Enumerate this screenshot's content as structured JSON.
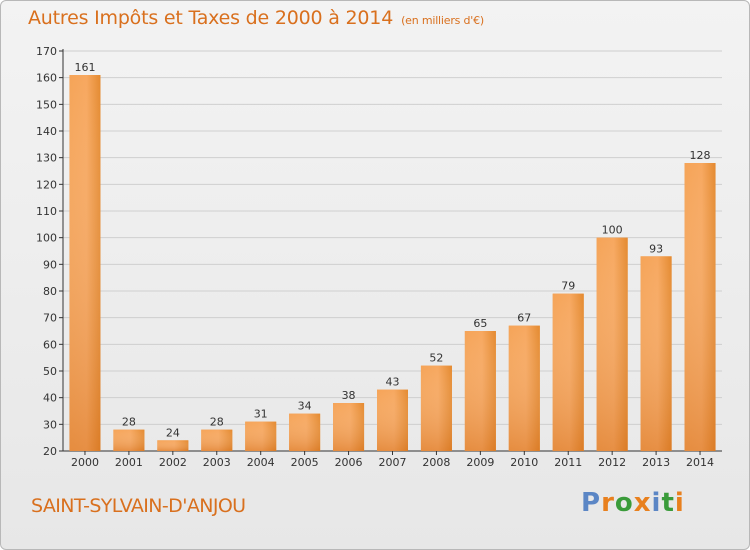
{
  "header": {
    "title": "Autres Impôts et Taxes de 2000 à 2014",
    "subtitle": "(en milliers d'€)"
  },
  "footer": {
    "commune": "SAINT-SYLVAIN-D'ANJOU",
    "logo": {
      "text": "Proxiti",
      "letters": [
        {
          "ch": "P",
          "color": "#5b86c5"
        },
        {
          "ch": "r",
          "color": "#e8801e"
        },
        {
          "ch": "o",
          "color": "#3a9b3a"
        },
        {
          "ch": "x",
          "color": "#e8801e"
        },
        {
          "ch": "i",
          "color": "#5b86c5"
        },
        {
          "ch": "t",
          "color": "#3a9b3a"
        },
        {
          "ch": "i",
          "color": "#e8801e"
        }
      ]
    }
  },
  "colors": {
    "accent": "#d9701e",
    "bar_light": "#f7a55a",
    "bar_dark": "#e07c20",
    "grid": "#c8c8c8"
  },
  "chart_data": {
    "type": "bar",
    "title": "Autres Impôts et Taxes de 2000 à 2014",
    "subtitle": "(en milliers d'€)",
    "categories": [
      "2000",
      "2001",
      "2002",
      "2003",
      "2004",
      "2005",
      "2006",
      "2007",
      "2008",
      "2009",
      "2010",
      "2011",
      "2012",
      "2013",
      "2014"
    ],
    "values": [
      161,
      28,
      24,
      28,
      31,
      34,
      38,
      43,
      52,
      65,
      67,
      79,
      100,
      93,
      128
    ],
    "ylim": [
      20,
      170
    ],
    "yticks": [
      20,
      30,
      40,
      50,
      60,
      70,
      80,
      90,
      100,
      110,
      120,
      130,
      140,
      150,
      160,
      170
    ],
    "grid": true,
    "xlabel": "",
    "ylabel": ""
  }
}
